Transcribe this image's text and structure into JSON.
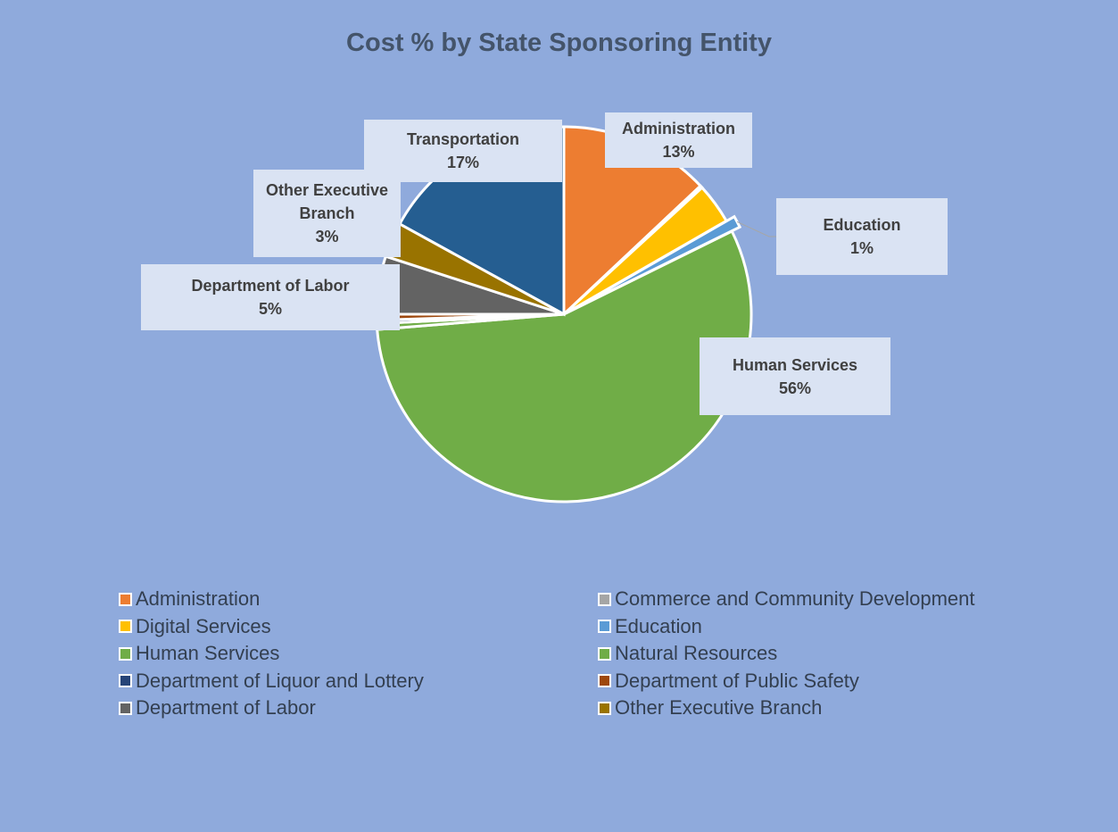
{
  "chart_data": {
    "type": "pie",
    "title": "Cost % by State Sponsoring Entity",
    "categories": [
      "Administration",
      "Commerce and Community Development",
      "Digital Services",
      "Education",
      "Human Services",
      "Natural Resources",
      "Department of Liquor and Lottery",
      "Department of Public Safety",
      "Department of Labor",
      "Other Executive Branch",
      "Transportation"
    ],
    "values": [
      13,
      0.2,
      3.5,
      1,
      56,
      0.5,
      0.3,
      0.5,
      5,
      3,
      17
    ],
    "value_labels": [
      "13%",
      null,
      null,
      "1%",
      "56%",
      null,
      null,
      null,
      "5%",
      "3%",
      "17%"
    ],
    "colors": [
      "#ED7D31",
      "#A5A5A5",
      "#FFC000",
      "#5B9BD5",
      "#70AD47",
      "#70AD47",
      "#264478",
      "#9E480E",
      "#636363",
      "#997300",
      "#255E91"
    ],
    "legend": [
      0,
      1,
      2,
      3,
      4,
      5,
      6,
      7,
      8,
      9
    ]
  }
}
